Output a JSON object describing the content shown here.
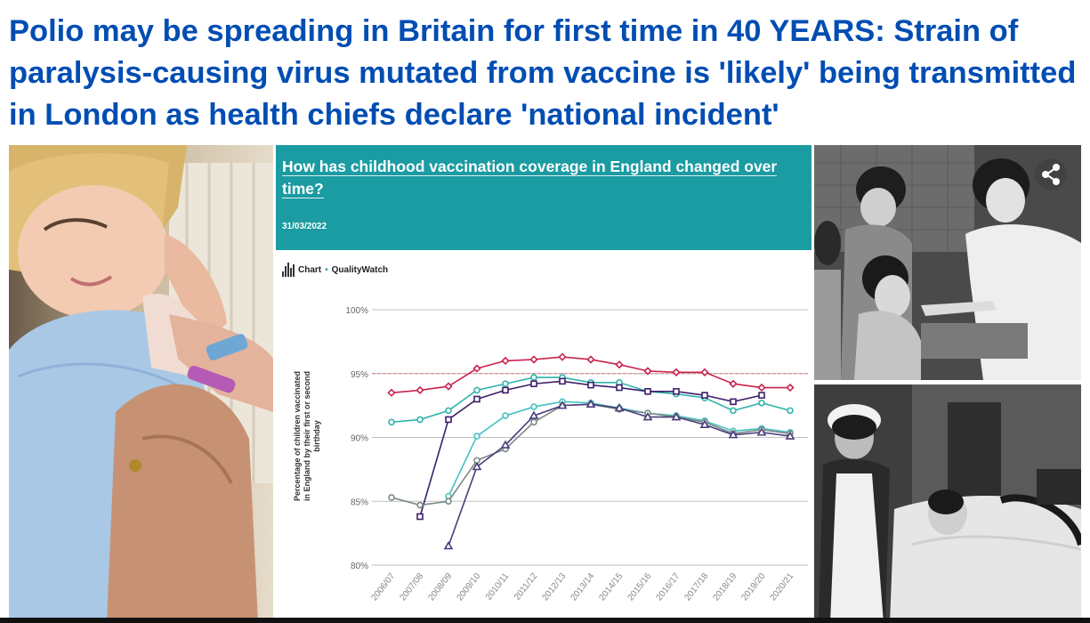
{
  "headline": "Polio may be spreading in Britain for first time in 40 YEARS: Strain of paralysis-causing virus mutated from vaccine is 'likely' being transmitted in London as health chiefs declare 'national incident'",
  "colors": {
    "headline": "#004db3",
    "chart_header": "#1b9ba2",
    "grid": "#bfbfbf",
    "target_line": "#d98080",
    "series": [
      "#c8234e",
      "#2fb4ab",
      "#3c1f6b",
      "#46c1c4",
      "#7a8a86",
      "#4a3c7a"
    ]
  },
  "icons": {
    "share": "share-icon",
    "chart_brand": "bar-chart-icon"
  },
  "images": {
    "left": "child-receiving-injection-photo",
    "top_right": "children-receiving-oral-polio-vaccine-photo",
    "bottom_right": "nurse-with-patient-in-iron-lung-photo"
  },
  "chart_data": {
    "type": "line",
    "title": "How has childhood vaccination coverage in England changed over time?",
    "date": "31/03/2022",
    "source_label": "Chart",
    "source_name": "QualityWatch",
    "ylabel": "Percentage of children vaccinated in England by their first or second birthday",
    "ylim": [
      80,
      100
    ],
    "yticks": [
      80,
      85,
      90,
      95,
      100
    ],
    "ytick_labels": [
      "80%",
      "85%",
      "90%",
      "95%",
      "100%"
    ],
    "target": 95,
    "grid": true,
    "categories": [
      "2006/07",
      "2007/08",
      "2008/09",
      "2009/10",
      "2010/11",
      "2011/12",
      "2012/13",
      "2013/14",
      "2014/15",
      "2015/16",
      "2016/17",
      "2017/18",
      "2018/19",
      "2019/20",
      "2020/21"
    ],
    "series": [
      {
        "marker": "diamond",
        "color": "#c8234e",
        "values": [
          93.5,
          93.7,
          94.0,
          95.4,
          96.0,
          96.1,
          96.3,
          96.1,
          95.7,
          95.2,
          95.1,
          95.1,
          94.2,
          93.9,
          93.9
        ]
      },
      {
        "marker": "circle",
        "color": "#2fb4ab",
        "values": [
          91.2,
          91.4,
          92.1,
          93.7,
          94.2,
          94.7,
          94.7,
          94.3,
          94.3,
          93.6,
          93.4,
          93.1,
          92.1,
          92.7,
          92.1
        ]
      },
      {
        "marker": "square",
        "color": "#3c1f6b",
        "values": [
          null,
          83.8,
          91.4,
          93.0,
          93.7,
          94.2,
          94.4,
          94.1,
          93.9,
          93.6,
          93.6,
          93.3,
          92.8,
          93.3,
          null
        ]
      },
      {
        "marker": "circle",
        "color": "#46c1c4",
        "values": [
          null,
          null,
          85.4,
          90.1,
          91.7,
          92.4,
          92.8,
          92.7,
          92.3,
          91.9,
          91.7,
          91.3,
          90.5,
          90.7,
          90.4
        ]
      },
      {
        "marker": "circle",
        "color": "#7a8a86",
        "values": [
          85.3,
          84.7,
          85.0,
          88.2,
          89.1,
          91.2,
          92.5,
          92.6,
          92.2,
          91.9,
          91.6,
          91.2,
          90.3,
          90.6,
          90.3
        ]
      },
      {
        "marker": "triangle",
        "color": "#4a3c7a",
        "values": [
          null,
          null,
          81.5,
          87.7,
          89.4,
          91.7,
          92.5,
          92.6,
          92.3,
          91.6,
          91.6,
          91.0,
          90.2,
          90.4,
          90.1
        ]
      }
    ]
  }
}
